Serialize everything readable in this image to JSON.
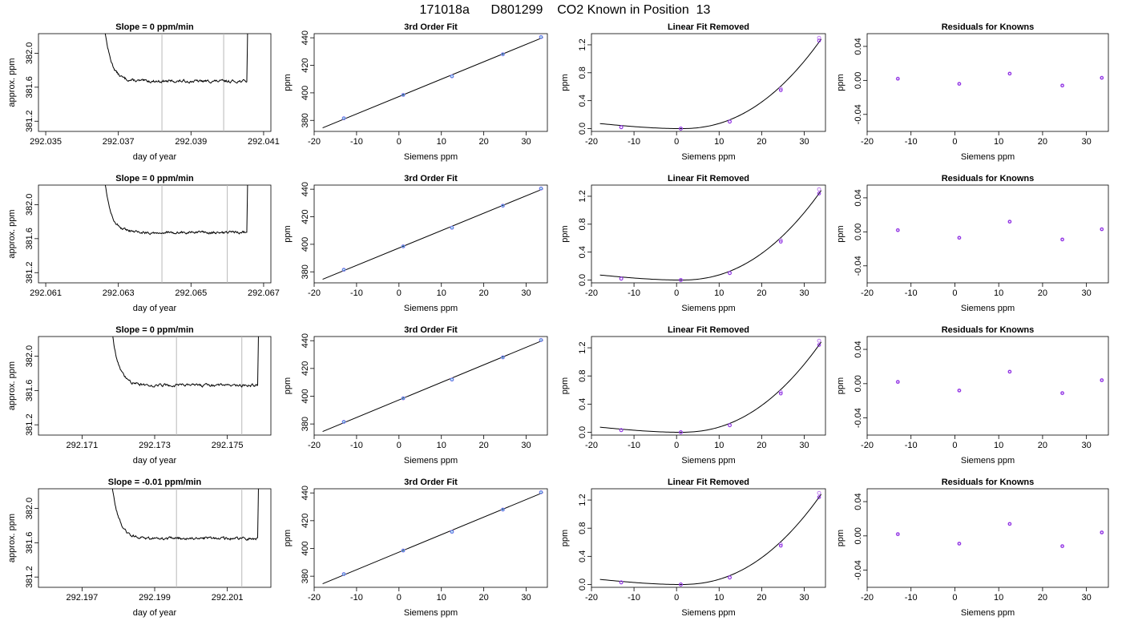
{
  "suptitle": "171018a      D801299    CO2 Known in Position  13",
  "colors": {
    "line": "#000000",
    "guide": "#b8b8b8",
    "known_measured": "#4a90e2",
    "known_fit": "#8a2be2",
    "known_outline": "#c080f0"
  },
  "chart_data": [
    {
      "type": "line",
      "panel": "trace",
      "row": 0,
      "title": "Slope =  0  ppm/min",
      "xlabel": "day of year",
      "ylabel": "approx. ppm",
      "xlim": [
        292.0348,
        292.0412
      ],
      "ylim": [
        381.08,
        382.23
      ],
      "xticks": [
        "292.035",
        "292.037",
        "292.039",
        "292.041"
      ],
      "yticks": [
        "381.2",
        "381.6",
        "382.0"
      ],
      "guides": [
        292.0382,
        292.0399
      ],
      "plateau": 381.67,
      "x_start": 292.0365,
      "x_end": 292.0406
    },
    {
      "type": "scatter",
      "panel": "fit",
      "row": 0,
      "title": "3rd Order Fit",
      "xlabel": "Siemens ppm",
      "ylabel": "ppm",
      "xlim": [
        -20,
        35
      ],
      "ylim": [
        372,
        443
      ],
      "xticks": [
        "-20",
        "-10",
        "0",
        "10",
        "20",
        "30"
      ],
      "yticks": [
        "380",
        "400",
        "420",
        "440"
      ],
      "x": [
        -13,
        1,
        12.5,
        24.5,
        33.5
      ],
      "y": [
        381.5,
        398.5,
        412,
        428,
        440.5
      ]
    },
    {
      "type": "scatter",
      "panel": "linear",
      "row": 0,
      "title": "Linear Fit Removed",
      "xlabel": "Siemens ppm",
      "ylabel": "ppm",
      "xlim": [
        -20,
        35
      ],
      "ylim": [
        -0.04,
        1.36
      ],
      "xticks": [
        "-20",
        "-10",
        "0",
        "10",
        "20",
        "30"
      ],
      "yticks": [
        "0.0",
        "0.4",
        "0.8",
        "1.2"
      ],
      "x": [
        -13,
        1,
        12.5,
        24.5,
        33.5
      ],
      "y": [
        0.02,
        0.0,
        0.1,
        0.55,
        1.26
      ],
      "y_measured": [
        0.02,
        0.0,
        0.1,
        0.57,
        1.3
      ]
    },
    {
      "type": "scatter",
      "panel": "resid",
      "row": 0,
      "title": "Residuals for Knowns",
      "xlabel": "Siemens ppm",
      "ylabel": "ppm",
      "xlim": [
        -20,
        35
      ],
      "ylim": [
        -0.06,
        0.055
      ],
      "xticks": [
        "-20",
        "-10",
        "0",
        "10",
        "20",
        "30"
      ],
      "yticks": [
        "-0.04",
        "0.00",
        "0.04"
      ],
      "x": [
        -13,
        1,
        12.5,
        24.5,
        33.5
      ],
      "y": [
        0.002,
        -0.004,
        0.008,
        -0.006,
        0.003
      ]
    },
    {
      "type": "line",
      "panel": "trace",
      "row": 1,
      "title": "Slope =  0  ppm/min",
      "xlabel": "day of year",
      "ylabel": "approx. ppm",
      "xlim": [
        292.0608,
        292.0672
      ],
      "ylim": [
        381.08,
        382.23
      ],
      "xticks": [
        "292.061",
        "292.063",
        "292.065",
        "292.067"
      ],
      "yticks": [
        "381.2",
        "381.6",
        "382.0"
      ],
      "guides": [
        292.0642,
        292.066
      ],
      "plateau": 381.67,
      "x_start": 292.0625,
      "x_end": 292.0666
    },
    {
      "type": "scatter",
      "panel": "fit",
      "row": 1,
      "title": "3rd Order Fit",
      "xlabel": "Siemens ppm",
      "ylabel": "ppm",
      "xlim": [
        -20,
        35
      ],
      "ylim": [
        372,
        443
      ],
      "xticks": [
        "-20",
        "-10",
        "0",
        "10",
        "20",
        "30"
      ],
      "yticks": [
        "380",
        "400",
        "420",
        "440"
      ],
      "x": [
        -13,
        1,
        12.5,
        24.5,
        33.5
      ],
      "y": [
        381.5,
        398.5,
        412,
        428,
        440.5
      ]
    },
    {
      "type": "scatter",
      "panel": "linear",
      "row": 1,
      "title": "Linear Fit Removed",
      "xlabel": "Siemens ppm",
      "ylabel": "ppm",
      "xlim": [
        -20,
        35
      ],
      "ylim": [
        -0.04,
        1.36
      ],
      "xticks": [
        "-20",
        "-10",
        "0",
        "10",
        "20",
        "30"
      ],
      "yticks": [
        "0.0",
        "0.4",
        "0.8",
        "1.2"
      ],
      "x": [
        -13,
        1,
        12.5,
        24.5,
        33.5
      ],
      "y": [
        0.02,
        0.0,
        0.1,
        0.55,
        1.24
      ],
      "y_measured": [
        0.02,
        0.0,
        0.1,
        0.57,
        1.3
      ]
    },
    {
      "type": "scatter",
      "panel": "resid",
      "row": 1,
      "title": "Residuals for Knowns",
      "xlabel": "Siemens ppm",
      "ylabel": "ppm",
      "xlim": [
        -20,
        35
      ],
      "ylim": [
        -0.06,
        0.055
      ],
      "xticks": [
        "-20",
        "-10",
        "0",
        "10",
        "20",
        "30"
      ],
      "yticks": [
        "-0.04",
        "0.00",
        "0.04"
      ],
      "x": [
        -13,
        1,
        12.5,
        24.5,
        33.5
      ],
      "y": [
        0.002,
        -0.007,
        0.012,
        -0.009,
        0.003
      ]
    },
    {
      "type": "line",
      "panel": "trace",
      "row": 2,
      "title": "Slope =  0  ppm/min",
      "xlabel": "day of year",
      "ylabel": "approx. ppm",
      "xlim": [
        292.1698,
        292.1762
      ],
      "ylim": [
        381.08,
        382.23
      ],
      "xticks": [
        "292.171",
        "292.173",
        "292.175"
      ],
      "yticks": [
        "381.2",
        "381.6",
        "382.0"
      ],
      "guides": [
        292.1736,
        292.1754
      ],
      "plateau": 381.66,
      "x_start": 292.1717,
      "x_end": 292.1759
    },
    {
      "type": "scatter",
      "panel": "fit",
      "row": 2,
      "title": "3rd Order Fit",
      "xlabel": "Siemens ppm",
      "ylabel": "ppm",
      "xlim": [
        -20,
        35
      ],
      "ylim": [
        372,
        443
      ],
      "xticks": [
        "-20",
        "-10",
        "0",
        "10",
        "20",
        "30"
      ],
      "yticks": [
        "380",
        "400",
        "420",
        "440"
      ],
      "x": [
        -13,
        1,
        12.5,
        24.5,
        33.5
      ],
      "y": [
        381.5,
        398.5,
        412,
        428,
        440.5
      ]
    },
    {
      "type": "scatter",
      "panel": "linear",
      "row": 2,
      "title": "Linear Fit Removed",
      "xlabel": "Siemens ppm",
      "ylabel": "ppm",
      "xlim": [
        -20,
        35
      ],
      "ylim": [
        -0.04,
        1.36
      ],
      "xticks": [
        "-20",
        "-10",
        "0",
        "10",
        "20",
        "30"
      ],
      "yticks": [
        "0.0",
        "0.4",
        "0.8",
        "1.2"
      ],
      "x": [
        -13,
        1,
        12.5,
        24.5,
        33.5
      ],
      "y": [
        0.03,
        0.0,
        0.1,
        0.55,
        1.24
      ],
      "y_measured": [
        0.03,
        0.0,
        0.1,
        0.57,
        1.3
      ]
    },
    {
      "type": "scatter",
      "panel": "resid",
      "row": 2,
      "title": "Residuals for Knowns",
      "xlabel": "Siemens ppm",
      "ylabel": "ppm",
      "xlim": [
        -20,
        35
      ],
      "ylim": [
        -0.06,
        0.055
      ],
      "xticks": [
        "-20",
        "-10",
        "0",
        "10",
        "20",
        "30"
      ],
      "yticks": [
        "-0.04",
        "0.00",
        "0.04"
      ],
      "x": [
        -13,
        1,
        12.5,
        24.5,
        33.5
      ],
      "y": [
        0.002,
        -0.008,
        0.014,
        -0.011,
        0.004
      ]
    },
    {
      "type": "line",
      "panel": "trace",
      "row": 3,
      "title": "Slope =  -0.01  ppm/min",
      "xlabel": "day of year",
      "ylabel": "approx. ppm",
      "xlim": [
        292.1958,
        292.2022
      ],
      "ylim": [
        381.08,
        382.23
      ],
      "xticks": [
        "292.197",
        "292.199",
        "292.201"
      ],
      "yticks": [
        "381.2",
        "381.6",
        "382.0"
      ],
      "guides": [
        292.1996,
        292.2014
      ],
      "plateau": 381.65,
      "x_start": 292.1977,
      "x_end": 292.2019
    },
    {
      "type": "scatter",
      "panel": "fit",
      "row": 3,
      "title": "3rd Order Fit",
      "xlabel": "Siemens ppm",
      "ylabel": "ppm",
      "xlim": [
        -20,
        35
      ],
      "ylim": [
        372,
        443
      ],
      "xticks": [
        "-20",
        "-10",
        "0",
        "10",
        "20",
        "30"
      ],
      "yticks": [
        "380",
        "400",
        "420",
        "440"
      ],
      "x": [
        -13,
        1,
        12.5,
        24.5,
        33.5
      ],
      "y": [
        381.5,
        398.5,
        412,
        428,
        440.5
      ]
    },
    {
      "type": "scatter",
      "panel": "linear",
      "row": 3,
      "title": "Linear Fit Removed",
      "xlabel": "Siemens ppm",
      "ylabel": "ppm",
      "xlim": [
        -20,
        35
      ],
      "ylim": [
        -0.04,
        1.36
      ],
      "xticks": [
        "-20",
        "-10",
        "0",
        "10",
        "20",
        "30"
      ],
      "yticks": [
        "0.0",
        "0.4",
        "0.8",
        "1.2"
      ],
      "x": [
        -13,
        1,
        12.5,
        24.5,
        33.5
      ],
      "y": [
        0.03,
        0.0,
        0.1,
        0.55,
        1.24
      ],
      "y_measured": [
        0.03,
        0.0,
        0.1,
        0.57,
        1.3
      ]
    },
    {
      "type": "scatter",
      "panel": "resid",
      "row": 3,
      "title": "Residuals for Knowns",
      "xlabel": "Siemens ppm",
      "ylabel": "ppm",
      "xlim": [
        -20,
        35
      ],
      "ylim": [
        -0.06,
        0.055
      ],
      "xticks": [
        "-20",
        "-10",
        "0",
        "10",
        "20",
        "30"
      ],
      "yticks": [
        "-0.04",
        "0.00",
        "0.04"
      ],
      "x": [
        -13,
        1,
        12.5,
        24.5,
        33.5
      ],
      "y": [
        0.002,
        -0.009,
        0.014,
        -0.012,
        0.004
      ]
    }
  ]
}
